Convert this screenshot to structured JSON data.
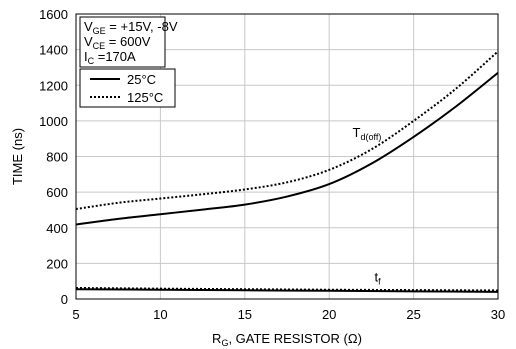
{
  "chart_data": {
    "type": "line",
    "title": "",
    "xlabel": {
      "main": "R",
      "sub": "G",
      "rest": ", GATE RESISTOR (Ω)"
    },
    "ylabel": "TIME (ns)",
    "xlim": [
      5,
      30
    ],
    "ylim": [
      0,
      1600
    ],
    "xticks": [
      5,
      10,
      15,
      20,
      25,
      30
    ],
    "yticks": [
      0,
      200,
      400,
      600,
      800,
      1000,
      1200,
      1400,
      1600
    ],
    "grid": true,
    "conditions": [
      {
        "main": "V",
        "sub": "GE",
        "rest": " = +15V, -8V"
      },
      {
        "main": "V",
        "sub": "CE",
        "rest": " = 600V"
      },
      {
        "main": "I",
        "sub": "C",
        "rest": " =170A"
      }
    ],
    "legend": {
      "position": "top-left",
      "entries": [
        {
          "label": "25°C",
          "style": "solid"
        },
        {
          "label": "125°C",
          "style": "dotted"
        }
      ]
    },
    "annotations": [
      {
        "main": "T",
        "sub": "d(off)",
        "x": 21.5,
        "y": 920
      },
      {
        "main": "t",
        "sub": "f",
        "x": 22.8,
        "y": 110
      }
    ],
    "series": [
      {
        "name": "25°C",
        "group": "Td(off)",
        "style": "solid",
        "x": [
          5,
          7.5,
          10,
          12.5,
          15,
          17.5,
          20,
          22.5,
          25,
          27.5,
          30
        ],
        "y": [
          418,
          450,
          476,
          502,
          530,
          575,
          645,
          760,
          910,
          1080,
          1270
        ]
      },
      {
        "name": "125°C",
        "group": "Td(off)",
        "style": "dotted",
        "x": [
          5,
          7.5,
          10,
          12.5,
          15,
          17.5,
          20,
          22.5,
          25,
          27.5,
          30
        ],
        "y": [
          505,
          540,
          564,
          588,
          615,
          655,
          725,
          840,
          1000,
          1180,
          1390
        ]
      },
      {
        "name": "25°C",
        "group": "tf",
        "style": "solid",
        "x": [
          5,
          10,
          15,
          20,
          25,
          30
        ],
        "y": [
          55,
          52,
          49,
          46,
          43,
          40
        ]
      },
      {
        "name": "125°C",
        "group": "tf",
        "style": "dotted",
        "x": [
          5,
          10,
          15,
          20,
          25,
          30
        ],
        "y": [
          62,
          58,
          55,
          52,
          50,
          48
        ]
      }
    ]
  }
}
